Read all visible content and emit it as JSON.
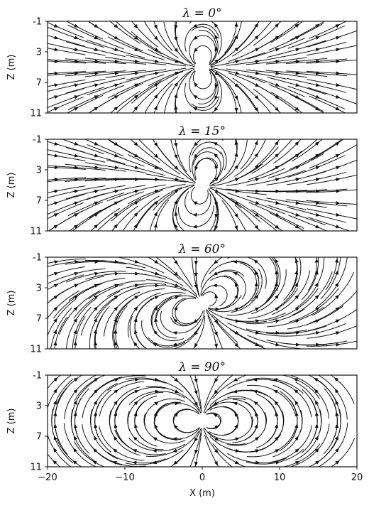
{
  "chart_data": [
    {
      "type": "streamplot",
      "title": "λ = 0°",
      "dip_deg": 0,
      "xlabel": "",
      "ylabel": "Z (m)",
      "xlim": [
        -20,
        20
      ],
      "ylim": [
        11,
        -1
      ],
      "y_ticks": [
        "-1",
        "3",
        "7",
        "11"
      ],
      "x_ticks": [],
      "source_center": [
        0,
        5
      ]
    },
    {
      "type": "streamplot",
      "title": "λ = 15°",
      "dip_deg": 15,
      "xlabel": "",
      "ylabel": "Z (m)",
      "xlim": [
        -20,
        20
      ],
      "ylim": [
        11,
        -1
      ],
      "y_ticks": [
        "-1",
        "3",
        "7",
        "11"
      ],
      "x_ticks": [],
      "source_center": [
        0,
        5
      ]
    },
    {
      "type": "streamplot",
      "title": "λ = 60°",
      "dip_deg": 60,
      "xlabel": "",
      "ylabel": "Z (m)",
      "xlim": [
        -20,
        20
      ],
      "ylim": [
        11,
        -1
      ],
      "y_ticks": [
        "-1",
        "3",
        "7",
        "11"
      ],
      "x_ticks": [],
      "source_center": [
        0,
        5
      ]
    },
    {
      "type": "streamplot",
      "title": "λ = 90°",
      "dip_deg": 90,
      "xlabel": "X (m)",
      "ylabel": "Z (m)",
      "xlim": [
        -20,
        20
      ],
      "ylim": [
        11,
        -1
      ],
      "y_ticks": [
        "-1",
        "3",
        "7",
        "11"
      ],
      "x_ticks": [
        "−20",
        "−10",
        "0",
        "10",
        "20"
      ],
      "source_center": [
        0,
        5
      ]
    }
  ]
}
